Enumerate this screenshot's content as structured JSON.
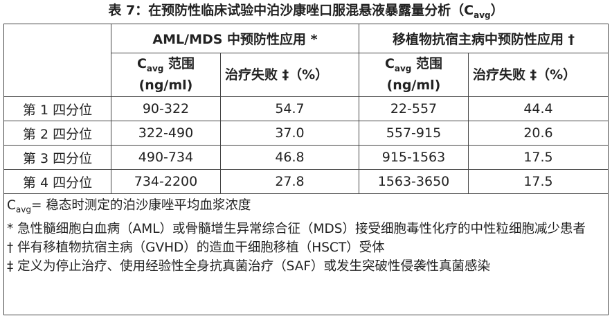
{
  "title": {
    "text": "表 7：在预防性临床试验中泊沙康唑口服混悬液暴露量分析（C",
    "subscript": "avg",
    "close": "）"
  },
  "table": {
    "group_headers": [
      "AML/MDS 中预防性应用 *",
      "移植物抗宿主病中预防性应用 †"
    ],
    "sub_headers": [
      {
        "symbol": "C",
        "subscript": "avg",
        "label": "范围",
        "unit": "(ng/ml)"
      },
      {
        "label": "治疗失败 ‡（%）"
      },
      {
        "symbol": "C",
        "subscript": "avg",
        "label": "范围",
        "unit": "(ng/ml)"
      },
      {
        "label": "治疗失败 ‡（%）"
      }
    ],
    "rows": [
      [
        "第 1 四分位",
        "90-322",
        "54.7",
        "22-557",
        "44.4"
      ],
      [
        "第 2 四分位",
        "322-490",
        "37.0",
        "557-915",
        "20.6"
      ],
      [
        "第 3 四分位",
        "490-734",
        "46.8",
        "915-1563",
        "17.5"
      ],
      [
        "第 4 四分位",
        "734-2200",
        "27.8",
        "1563-3650",
        "17.5"
      ]
    ],
    "footnotes": {
      "avg_symbol": "C",
      "avg_subscript": "avg",
      "avg_text": "= 稳态时测定的泊沙康唑平均血浆浓度",
      "notes": [
        "* 急性髓细胞白血病（AML）或骨髓增生异常综合征（MDS）接受细胞毒性化疗的中性粒细胞减少患者",
        "† 伴有移植物抗宿主病（GVHD）的造血干细胞移植（HSCT）受体",
        "‡ 定义为停止治疗、使用经验性全身抗真菌治疗（SAF）或发生突破性侵袭性真菌感染"
      ]
    }
  }
}
